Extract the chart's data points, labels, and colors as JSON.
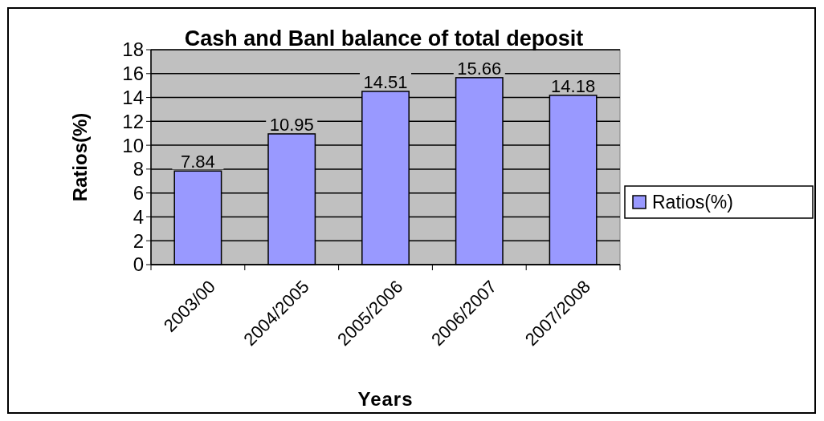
{
  "chart_data": {
    "type": "bar",
    "title": "Cash and Banl balance of total deposit",
    "xlabel": "Years",
    "ylabel": "Ratios(%)",
    "categories": [
      "2003/00",
      "2004/2005",
      "2005/2006",
      "2006/2007",
      "2007/2008"
    ],
    "series": [
      {
        "name": "Ratios(%)",
        "color": "#9999ff",
        "values": [
          7.84,
          10.95,
          14.51,
          15.66,
          14.18
        ]
      }
    ],
    "ylim": [
      0,
      18
    ],
    "yticks": [
      0,
      2,
      4,
      6,
      8,
      10,
      12,
      14,
      16,
      18
    ],
    "grid": "y",
    "legend": "right",
    "data_labels": true
  }
}
